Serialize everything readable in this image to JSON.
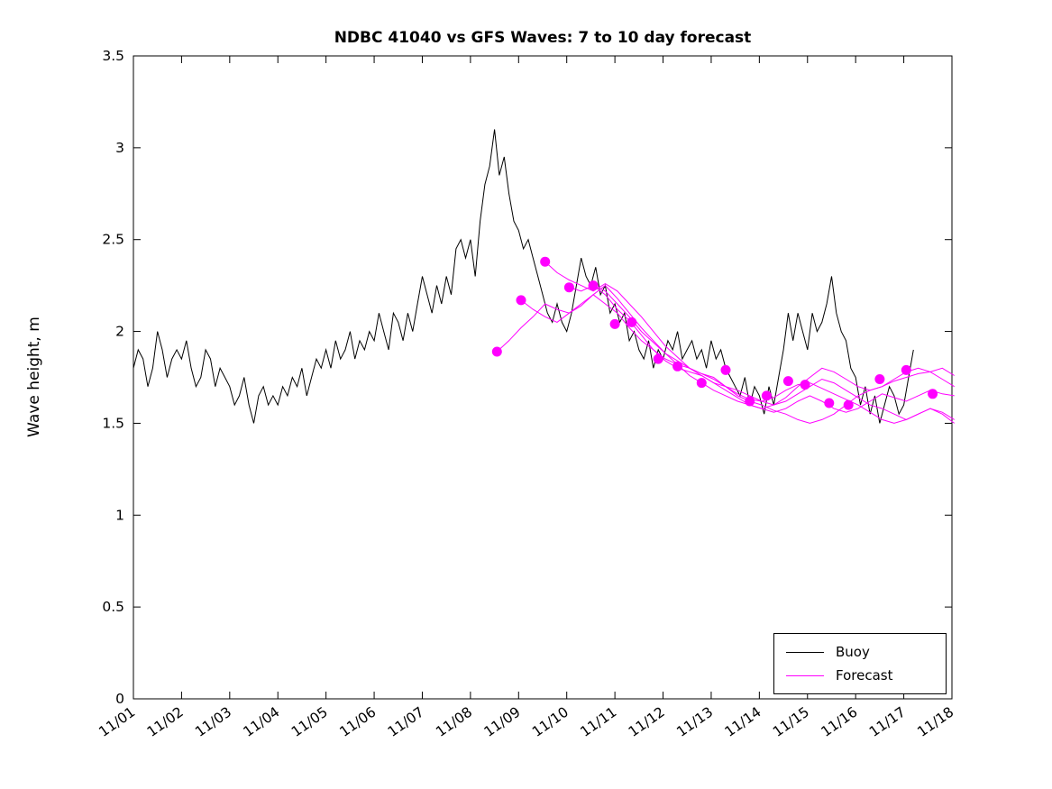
{
  "chart_data": {
    "type": "line",
    "title": "NDBC 41040 vs GFS Waves: 7 to 10 day forecast",
    "ylabel": "Wave height, m",
    "xlabel": "",
    "grid": false,
    "legend_position": "bottom-right",
    "xlim": [
      0,
      17
    ],
    "ylim": [
      0,
      3.5
    ],
    "x_tick_labels": [
      "11/01",
      "11/02",
      "11/03",
      "11/04",
      "11/05",
      "11/06",
      "11/07",
      "11/08",
      "11/09",
      "11/10",
      "11/11",
      "11/12",
      "11/13",
      "11/14",
      "11/15",
      "11/16",
      "11/17",
      "11/18"
    ],
    "y_tick_values": [
      0,
      0.5,
      1,
      1.5,
      2,
      2.5,
      3,
      3.5
    ],
    "y_tick_labels": [
      "0",
      "0.5",
      "1",
      "1.5",
      "2",
      "2.5",
      "3",
      "3.5"
    ],
    "colors": {
      "buoy": "#000000",
      "forecast": "#FF00FF"
    },
    "legend": {
      "entries": [
        {
          "label": "Buoy",
          "color": "#000000"
        },
        {
          "label": "Forecast",
          "color": "#FF00FF"
        }
      ]
    },
    "series": {
      "buoy": {
        "name": "Buoy",
        "x_start": 0,
        "x_step": 0.1,
        "values": [
          1.8,
          1.9,
          1.85,
          1.7,
          1.8,
          2.0,
          1.9,
          1.75,
          1.85,
          1.9,
          1.85,
          1.95,
          1.8,
          1.7,
          1.75,
          1.9,
          1.85,
          1.7,
          1.8,
          1.75,
          1.7,
          1.6,
          1.65,
          1.75,
          1.6,
          1.5,
          1.65,
          1.7,
          1.6,
          1.65,
          1.6,
          1.7,
          1.65,
          1.75,
          1.7,
          1.8,
          1.65,
          1.75,
          1.85,
          1.8,
          1.9,
          1.8,
          1.95,
          1.85,
          1.9,
          2.0,
          1.85,
          1.95,
          1.9,
          2.0,
          1.95,
          2.1,
          2.0,
          1.9,
          2.1,
          2.05,
          1.95,
          2.1,
          2.0,
          2.15,
          2.3,
          2.2,
          2.1,
          2.25,
          2.15,
          2.3,
          2.2,
          2.45,
          2.5,
          2.4,
          2.5,
          2.3,
          2.6,
          2.8,
          2.9,
          3.1,
          2.85,
          2.95,
          2.75,
          2.6,
          2.55,
          2.45,
          2.5,
          2.4,
          2.3,
          2.2,
          2.1,
          2.05,
          2.15,
          2.05,
          2.0,
          2.1,
          2.25,
          2.4,
          2.3,
          2.25,
          2.35,
          2.2,
          2.25,
          2.1,
          2.15,
          2.05,
          2.1,
          1.95,
          2.0,
          1.9,
          1.85,
          1.95,
          1.8,
          1.9,
          1.85,
          1.95,
          1.9,
          2.0,
          1.85,
          1.9,
          1.95,
          1.85,
          1.9,
          1.8,
          1.95,
          1.85,
          1.9,
          1.8,
          1.75,
          1.7,
          1.65,
          1.75,
          1.6,
          1.7,
          1.65,
          1.55,
          1.7,
          1.6,
          1.75,
          1.9,
          2.1,
          1.95,
          2.1,
          2.0,
          1.9,
          2.1,
          2.0,
          2.05,
          2.15,
          2.3,
          2.1,
          2.0,
          1.95,
          1.8,
          1.75,
          1.6,
          1.7,
          1.55,
          1.65,
          1.5,
          1.6,
          1.7,
          1.65,
          1.55,
          1.6,
          1.75,
          1.9
        ]
      },
      "forecast_runs": [
        {
          "x_start": 7.55,
          "x_step": 0.25,
          "values": [
            1.89,
            1.95,
            2.02,
            2.08,
            2.15,
            2.12,
            2.1,
            2.14,
            2.2,
            2.15,
            2.1,
            2.02,
            1.95,
            1.9,
            1.85,
            1.82,
            1.8,
            1.77,
            1.75,
            1.7,
            1.65,
            1.62,
            1.6,
            1.57,
            1.55,
            1.52,
            1.5,
            1.52,
            1.55,
            1.6,
            1.65,
            1.68,
            1.7,
            1.73,
            1.75,
            1.77,
            1.78,
            1.8,
            1.76
          ]
        },
        {
          "x_start": 8.05,
          "x_step": 0.25,
          "values": [
            2.17,
            2.12,
            2.08,
            2.05,
            2.1,
            2.15,
            2.2,
            2.25,
            2.18,
            2.1,
            2.02,
            1.95,
            1.88,
            1.82,
            1.76,
            1.72,
            1.68,
            1.65,
            1.62,
            1.6,
            1.58,
            1.56,
            1.58,
            1.62,
            1.65,
            1.62,
            1.58,
            1.56,
            1.58,
            1.62,
            1.66,
            1.64,
            1.62,
            1.65,
            1.68,
            1.66,
            1.65
          ]
        },
        {
          "x_start": 8.55,
          "x_step": 0.25,
          "values": [
            2.38,
            2.32,
            2.28,
            2.25,
            2.22,
            2.26,
            2.22,
            2.15,
            2.08,
            2.0,
            1.92,
            1.86,
            1.8,
            1.76,
            1.72,
            1.7,
            1.68,
            1.65,
            1.62,
            1.6,
            1.62,
            1.66,
            1.7,
            1.74,
            1.72,
            1.68,
            1.64,
            1.6,
            1.58,
            1.55,
            1.52,
            1.55,
            1.58,
            1.56,
            1.52
          ]
        },
        {
          "x_start": 9.05,
          "x_step": 0.25,
          "values": [
            2.24,
            2.22,
            2.25,
            2.22,
            2.15,
            2.08,
            2.0,
            1.94,
            1.88,
            1.84,
            1.8,
            1.77,
            1.74,
            1.7,
            1.66,
            1.63,
            1.62,
            1.64,
            1.68,
            1.71,
            1.72,
            1.69,
            1.66,
            1.63,
            1.6,
            1.56,
            1.52,
            1.5,
            1.52,
            1.55,
            1.58,
            1.55,
            1.5
          ]
        },
        {
          "x_start": 9.55,
          "x_step": 0.25,
          "values": [
            2.25,
            2.2,
            2.12,
            2.06,
            1.98,
            1.9,
            1.84,
            1.8,
            1.78,
            1.76,
            1.72,
            1.68,
            1.64,
            1.6,
            1.58,
            1.6,
            1.64,
            1.7,
            1.75,
            1.8,
            1.78,
            1.74,
            1.7,
            1.68,
            1.7,
            1.74,
            1.78,
            1.8,
            1.78,
            1.74,
            1.7
          ]
        }
      ],
      "forecast_markers": [
        [
          7.55,
          1.89
        ],
        [
          8.05,
          2.17
        ],
        [
          8.55,
          2.38
        ],
        [
          9.05,
          2.24
        ],
        [
          9.55,
          2.25
        ],
        [
          10.0,
          2.04
        ],
        [
          10.35,
          2.05
        ],
        [
          10.9,
          1.85
        ],
        [
          11.3,
          1.81
        ],
        [
          11.8,
          1.72
        ],
        [
          12.3,
          1.79
        ],
        [
          12.8,
          1.62
        ],
        [
          13.15,
          1.65
        ],
        [
          13.6,
          1.73
        ],
        [
          13.95,
          1.71
        ],
        [
          14.45,
          1.61
        ],
        [
          14.85,
          1.6
        ],
        [
          15.5,
          1.74
        ],
        [
          16.05,
          1.79
        ],
        [
          16.6,
          1.66
        ]
      ]
    }
  }
}
